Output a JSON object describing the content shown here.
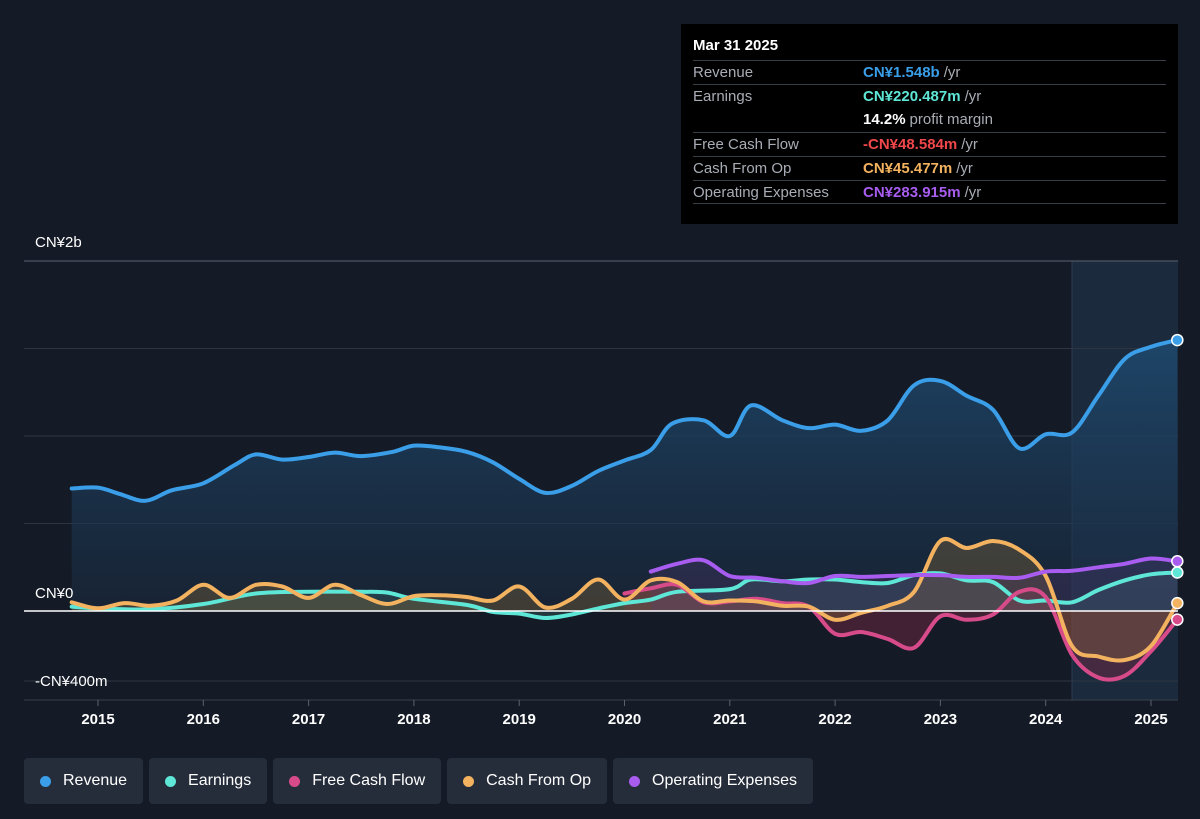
{
  "tooltip": {
    "date": "Mar 31 2025",
    "rows": [
      {
        "label": "Revenue",
        "value": "CN¥1.548b",
        "unit": "/yr",
        "color": "#3a9ee8"
      },
      {
        "label": "Earnings",
        "value": "CN¥220.487m",
        "unit": "/yr",
        "color": "#5ee6d6"
      },
      {
        "label": "",
        "value": "14.2%",
        "unit": "profit margin",
        "color": "#ffffff"
      },
      {
        "label": "Free Cash Flow",
        "value": "-CN¥48.584m",
        "unit": "/yr",
        "color": "#f0474b"
      },
      {
        "label": "Cash From Op",
        "value": "CN¥45.477m",
        "unit": "/yr",
        "color": "#f3b25f"
      },
      {
        "label": "Operating Expenses",
        "value": "CN¥283.915m",
        "unit": "/yr",
        "color": "#a85cf0"
      }
    ]
  },
  "legend": [
    {
      "label": "Revenue",
      "color": "#3a9ee8"
    },
    {
      "label": "Earnings",
      "color": "#5ee6d6"
    },
    {
      "label": "Free Cash Flow",
      "color": "#d84b8a"
    },
    {
      "label": "Cash From Op",
      "color": "#f3b25f"
    },
    {
      "label": "Operating Expenses",
      "color": "#a85cf0"
    }
  ],
  "chart_data": {
    "type": "line",
    "y_tick_labels": [
      "CN¥2b",
      "CN¥0",
      "-CN¥400m"
    ],
    "x_tick_labels": [
      "2015",
      "2016",
      "2017",
      "2018",
      "2019",
      "2020",
      "2021",
      "2022",
      "2023",
      "2024",
      "2025"
    ],
    "ylim": [
      -400,
      2000
    ],
    "xlim": [
      2014.45,
      2025.25
    ],
    "grid": true,
    "legend_position": "bottom",
    "highlight_start": 2024.25,
    "series": [
      {
        "name": "Revenue",
        "color": "#3a9ee8",
        "points": [
          [
            2014.75,
            700
          ],
          [
            2015.0,
            705
          ],
          [
            2015.2,
            670
          ],
          [
            2015.45,
            630
          ],
          [
            2015.7,
            690
          ],
          [
            2016.0,
            730
          ],
          [
            2016.3,
            835
          ],
          [
            2016.5,
            895
          ],
          [
            2016.75,
            865
          ],
          [
            2017.0,
            880
          ],
          [
            2017.25,
            905
          ],
          [
            2017.5,
            885
          ],
          [
            2017.8,
            910
          ],
          [
            2018.0,
            945
          ],
          [
            2018.25,
            935
          ],
          [
            2018.5,
            910
          ],
          [
            2018.75,
            850
          ],
          [
            2019.0,
            755
          ],
          [
            2019.25,
            675
          ],
          [
            2019.5,
            715
          ],
          [
            2019.75,
            800
          ],
          [
            2020.0,
            860
          ],
          [
            2020.25,
            920
          ],
          [
            2020.45,
            1070
          ],
          [
            2020.75,
            1090
          ],
          [
            2021.0,
            1000
          ],
          [
            2021.2,
            1175
          ],
          [
            2021.5,
            1090
          ],
          [
            2021.75,
            1045
          ],
          [
            2022.0,
            1065
          ],
          [
            2022.25,
            1030
          ],
          [
            2022.5,
            1090
          ],
          [
            2022.75,
            1290
          ],
          [
            2023.0,
            1315
          ],
          [
            2023.25,
            1230
          ],
          [
            2023.5,
            1150
          ],
          [
            2023.75,
            930
          ],
          [
            2024.0,
            1010
          ],
          [
            2024.25,
            1020
          ],
          [
            2024.5,
            1230
          ],
          [
            2024.75,
            1440
          ],
          [
            2025.0,
            1510
          ],
          [
            2025.25,
            1548
          ]
        ]
      },
      {
        "name": "Earnings",
        "color": "#5ee6d6",
        "points": [
          [
            2014.75,
            25
          ],
          [
            2015.0,
            15
          ],
          [
            2015.5,
            10
          ],
          [
            2016.0,
            40
          ],
          [
            2016.5,
            100
          ],
          [
            2017.0,
            110
          ],
          [
            2017.5,
            110
          ],
          [
            2017.75,
            105
          ],
          [
            2018.0,
            70
          ],
          [
            2018.5,
            35
          ],
          [
            2018.75,
            -5
          ],
          [
            2019.0,
            -15
          ],
          [
            2019.25,
            -40
          ],
          [
            2019.5,
            -20
          ],
          [
            2019.75,
            15
          ],
          [
            2020.0,
            45
          ],
          [
            2020.25,
            65
          ],
          [
            2020.5,
            110
          ],
          [
            2021.0,
            125
          ],
          [
            2021.2,
            180
          ],
          [
            2021.5,
            170
          ],
          [
            2021.75,
            180
          ],
          [
            2022.0,
            180
          ],
          [
            2022.25,
            165
          ],
          [
            2022.5,
            160
          ],
          [
            2022.75,
            205
          ],
          [
            2023.0,
            215
          ],
          [
            2023.25,
            175
          ],
          [
            2023.5,
            165
          ],
          [
            2023.75,
            60
          ],
          [
            2024.0,
            60
          ],
          [
            2024.25,
            50
          ],
          [
            2024.5,
            120
          ],
          [
            2024.75,
            175
          ],
          [
            2025.0,
            210
          ],
          [
            2025.25,
            220
          ]
        ]
      },
      {
        "name": "Free Cash Flow",
        "color": "#d84b8a",
        "points": [
          [
            2020.0,
            100
          ],
          [
            2020.25,
            130
          ],
          [
            2020.5,
            150
          ],
          [
            2020.75,
            50
          ],
          [
            2021.0,
            55
          ],
          [
            2021.25,
            70
          ],
          [
            2021.5,
            45
          ],
          [
            2021.75,
            25
          ],
          [
            2022.0,
            -130
          ],
          [
            2022.25,
            -120
          ],
          [
            2022.5,
            -160
          ],
          [
            2022.75,
            -210
          ],
          [
            2023.0,
            -30
          ],
          [
            2023.25,
            -50
          ],
          [
            2023.5,
            -20
          ],
          [
            2023.75,
            110
          ],
          [
            2024.0,
            80
          ],
          [
            2024.25,
            -250
          ],
          [
            2024.5,
            -380
          ],
          [
            2024.75,
            -370
          ],
          [
            2025.0,
            -230
          ],
          [
            2025.25,
            -49
          ]
        ]
      },
      {
        "name": "Cash From Op",
        "color": "#f3b25f",
        "points": [
          [
            2014.75,
            50
          ],
          [
            2015.0,
            15
          ],
          [
            2015.25,
            45
          ],
          [
            2015.5,
            30
          ],
          [
            2015.75,
            60
          ],
          [
            2016.0,
            150
          ],
          [
            2016.25,
            75
          ],
          [
            2016.5,
            150
          ],
          [
            2016.75,
            140
          ],
          [
            2017.0,
            75
          ],
          [
            2017.25,
            150
          ],
          [
            2017.5,
            90
          ],
          [
            2017.75,
            40
          ],
          [
            2018.0,
            85
          ],
          [
            2018.25,
            90
          ],
          [
            2018.5,
            80
          ],
          [
            2018.75,
            60
          ],
          [
            2019.0,
            140
          ],
          [
            2019.25,
            20
          ],
          [
            2019.5,
            70
          ],
          [
            2019.75,
            180
          ],
          [
            2020.0,
            65
          ],
          [
            2020.25,
            175
          ],
          [
            2020.5,
            165
          ],
          [
            2020.75,
            55
          ],
          [
            2021.0,
            60
          ],
          [
            2021.25,
            55
          ],
          [
            2021.5,
            30
          ],
          [
            2021.75,
            25
          ],
          [
            2022.0,
            -50
          ],
          [
            2022.25,
            -10
          ],
          [
            2022.5,
            30
          ],
          [
            2022.75,
            110
          ],
          [
            2023.0,
            400
          ],
          [
            2023.25,
            360
          ],
          [
            2023.5,
            400
          ],
          [
            2023.75,
            350
          ],
          [
            2024.0,
            200
          ],
          [
            2024.25,
            -200
          ],
          [
            2024.5,
            -260
          ],
          [
            2024.75,
            -280
          ],
          [
            2025.0,
            -200
          ],
          [
            2025.25,
            45
          ]
        ]
      },
      {
        "name": "Operating Expenses",
        "color": "#a85cf0",
        "points": [
          [
            2020.25,
            225
          ],
          [
            2020.5,
            270
          ],
          [
            2020.75,
            290
          ],
          [
            2021.0,
            200
          ],
          [
            2021.25,
            190
          ],
          [
            2021.5,
            170
          ],
          [
            2021.75,
            160
          ],
          [
            2022.0,
            200
          ],
          [
            2022.25,
            195
          ],
          [
            2022.5,
            200
          ],
          [
            2022.75,
            205
          ],
          [
            2023.0,
            205
          ],
          [
            2023.25,
            195
          ],
          [
            2023.5,
            195
          ],
          [
            2023.75,
            190
          ],
          [
            2024.0,
            225
          ],
          [
            2024.25,
            230
          ],
          [
            2024.5,
            250
          ],
          [
            2024.75,
            270
          ],
          [
            2025.0,
            300
          ],
          [
            2025.25,
            284
          ]
        ]
      }
    ]
  }
}
